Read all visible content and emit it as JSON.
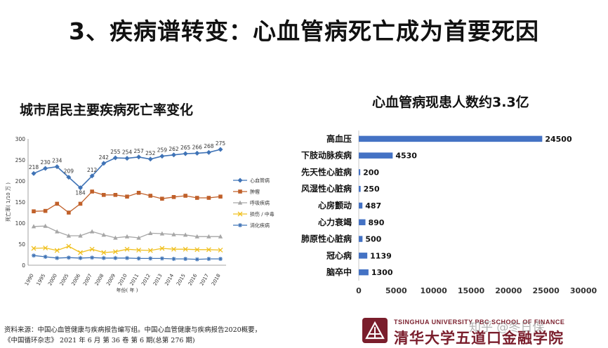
{
  "slide": {
    "title": "3、疾病谱转变：心血管病死亡成为首要死因",
    "left_subtitle": "城市居民主要疾病死亡率变化",
    "right_subtitle": "心血管病现患人数约3.3亿",
    "source_line1": "资料来源：中国心血管健康与疾病报告编写组。中国心血管健康与疾病报告2020概要，",
    "source_line2": "《中国循环杂志》 2021 年 6 月 第 36 卷 第 6 期(总第 276 期)",
    "logo_en": "TSINGHUA UNIVERSITY PBC SCHOOL OF FINANCE",
    "logo_cn": "清华大学五道口金融学院",
    "watermark": "知乎 @冬日保"
  },
  "chart_data": [
    {
      "type": "line",
      "title": "城市居民主要疾病死亡率变化",
      "xlabel": "年份( 年 )",
      "ylabel": "死亡率( 1/10 万 )",
      "ylim": [
        0,
        300
      ],
      "yticks": [
        0,
        50,
        100,
        150,
        200,
        250,
        300
      ],
      "x": [
        "1990",
        "1995",
        "2000",
        "2005",
        "2006",
        "2007",
        "2008",
        "2009",
        "2010",
        "2011",
        "2012",
        "2013",
        "2014",
        "2015",
        "2016",
        "2017",
        "2018"
      ],
      "legend_position": "right",
      "series": [
        {
          "name": "心血管病",
          "color": "#3f73b6",
          "marker": "diamond",
          "values": [
            218,
            230,
            234,
            209,
            184,
            212,
            242,
            255,
            254,
            257,
            252,
            259,
            262,
            265,
            266,
            268,
            275
          ],
          "labels": [
            "218",
            "230",
            "234",
            "209",
            "184",
            "212",
            "242",
            "255",
            "254",
            "257",
            "252",
            "259",
            "262",
            "265",
            "266",
            "268",
            "275"
          ]
        },
        {
          "name": "肿瘤",
          "color": "#c0602a",
          "marker": "square",
          "values": [
            128,
            129,
            146,
            125,
            146,
            175,
            167,
            167,
            163,
            172,
            165,
            158,
            162,
            165,
            160,
            160,
            163
          ]
        },
        {
          "name": "呼吸疾病",
          "color": "#a6a6a6",
          "marker": "triangle",
          "values": [
            92,
            93,
            80,
            70,
            70,
            80,
            72,
            65,
            68,
            65,
            76,
            75,
            73,
            72,
            68,
            68,
            68
          ]
        },
        {
          "name": "损伤 / 中毒",
          "color": "#f0c020",
          "marker": "x",
          "values": [
            40,
            41,
            35,
            45,
            30,
            38,
            30,
            32,
            38,
            36,
            35,
            40,
            38,
            38,
            37,
            37,
            36
          ]
        },
        {
          "name": "消化疾病",
          "color": "#3f73b6",
          "marker": "star",
          "values": [
            23,
            20,
            17,
            18,
            17,
            18,
            17,
            17,
            17,
            16,
            16,
            16,
            15,
            15,
            14,
            15,
            15
          ]
        }
      ]
    },
    {
      "type": "bar",
      "orientation": "horizontal",
      "title": "心血管病现患人数约3.3亿",
      "color": "#4472c4",
      "xlim": [
        0,
        30000
      ],
      "xticks": [
        "0",
        "5000",
        "10000",
        "15000",
        "20000",
        "25000",
        "30000"
      ],
      "categories": [
        "高血压",
        "下肢动脉疾病",
        "先天性心脏病",
        "风湿性心脏病",
        "心房颤动",
        "心力衰竭",
        "肺原性心脏病",
        "冠心病",
        "脑卒中"
      ],
      "values": [
        24500,
        4530,
        200,
        250,
        487,
        890,
        500,
        1139,
        1300
      ],
      "value_labels": [
        "24500",
        "4530",
        "200",
        "250",
        "487",
        "890",
        "500",
        "1139",
        "1300"
      ]
    }
  ]
}
